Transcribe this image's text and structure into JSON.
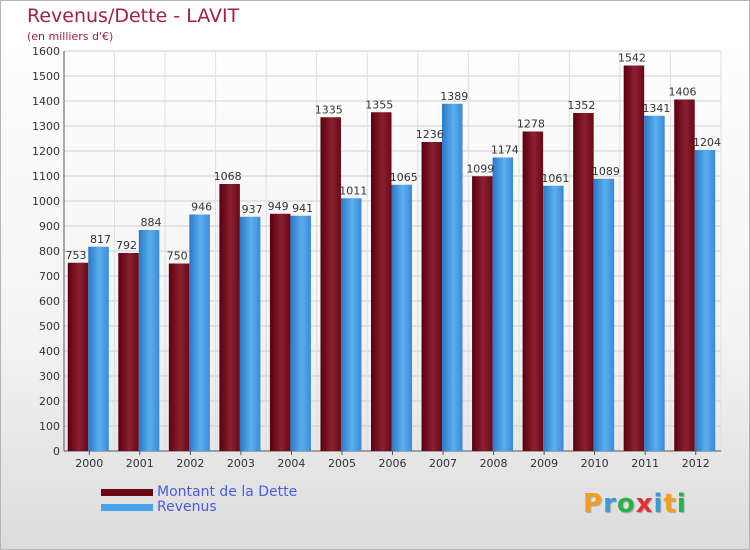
{
  "title": "Revenus/Dette - LAVIT",
  "subtitle": "(en milliers d'€)",
  "logo": {
    "letters": [
      "P",
      "r",
      "o",
      "x",
      "i",
      "t",
      "i"
    ],
    "colors": [
      "#f0a020",
      "#3a9ad9",
      "#2ab04a",
      "#e03030",
      "#3a9ad9",
      "#f0a020",
      "#2ab04a"
    ]
  },
  "colors": {
    "dette": "#7a1020",
    "revenus": "#4aa3e8",
    "title": "#a0204a",
    "legend_text": "#4a5ce0"
  },
  "chart_data": {
    "type": "bar",
    "title": "Revenus/Dette - LAVIT",
    "ylabel": "(en milliers d'€)",
    "xlabel": "",
    "categories": [
      "2000",
      "2001",
      "2002",
      "2003",
      "2004",
      "2005",
      "2006",
      "2007",
      "2008",
      "2009",
      "2010",
      "2011",
      "2012"
    ],
    "series": [
      {
        "name": "Montant de la Dette",
        "values": [
          753,
          792,
          750,
          1068,
          949,
          1335,
          1355,
          1236,
          1099,
          1278,
          1352,
          1542,
          1406
        ]
      },
      {
        "name": "Revenus",
        "values": [
          817,
          884,
          946,
          937,
          941,
          1011,
          1065,
          1389,
          1174,
          1061,
          1089,
          1341,
          1204
        ]
      }
    ],
    "ylim": [
      0,
      1600
    ],
    "yticks": [
      0,
      100,
      200,
      300,
      400,
      500,
      600,
      700,
      800,
      900,
      1000,
      1100,
      1200,
      1300,
      1400,
      1500,
      1600
    ],
    "grid": true,
    "legend": "bottom-left"
  }
}
